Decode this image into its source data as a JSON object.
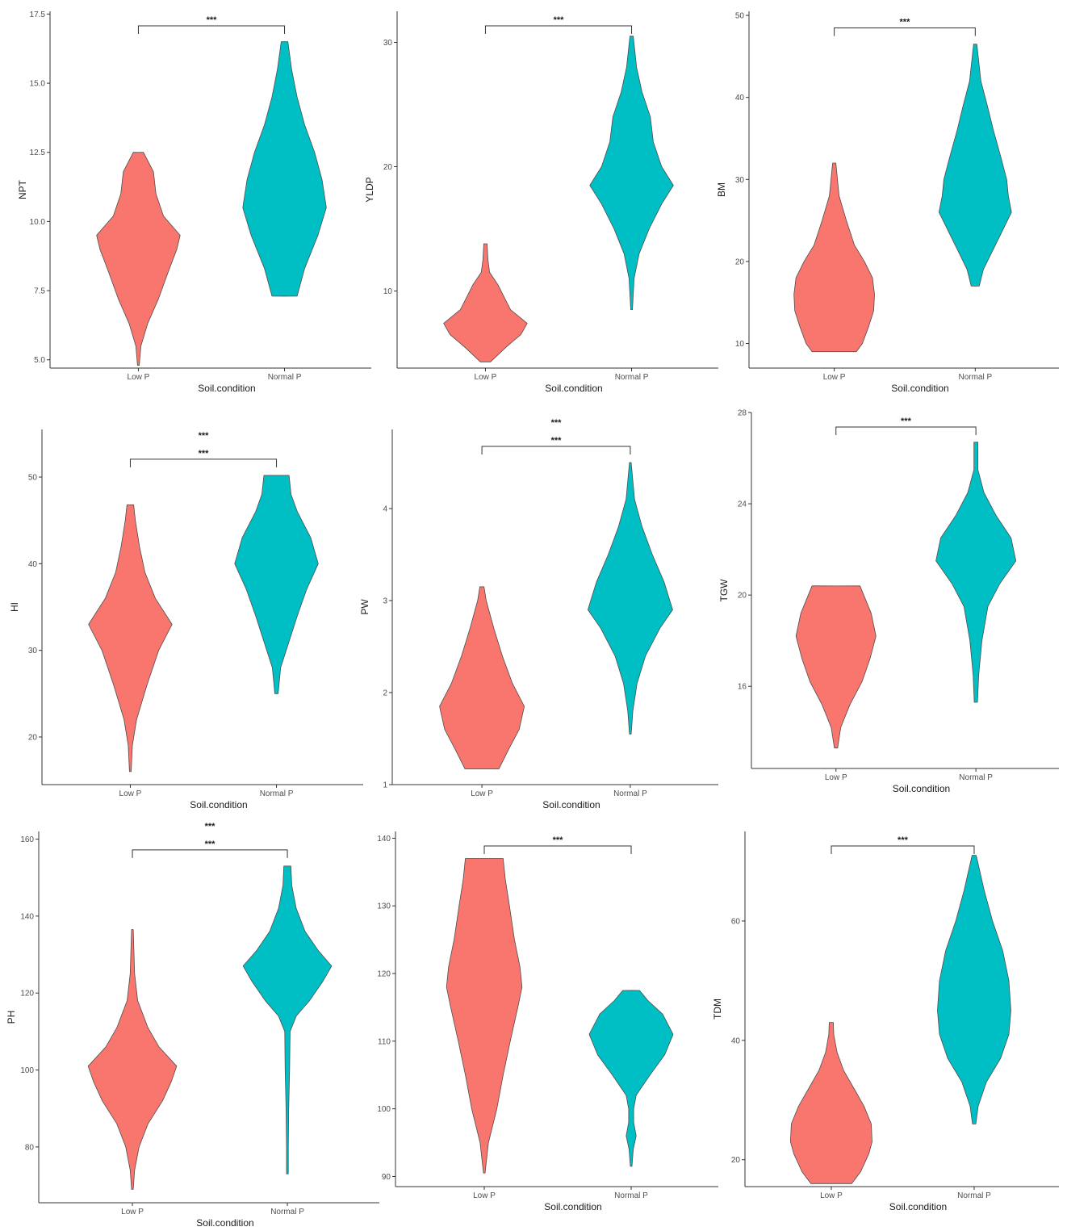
{
  "colors": {
    "low_p": "#F8766D",
    "normal_p": "#00BFC4",
    "outline": "#4d4d4d",
    "axis": "#333333",
    "text": "#1a1a1a"
  },
  "chart_data": [
    {
      "type": "violin",
      "ylabel": "NPT",
      "xlabel": "Soil.condition",
      "categories": [
        "Low P",
        "Normal P"
      ],
      "ylim": [
        4.7,
        17.6
      ],
      "yticks": [
        5.0,
        7.5,
        10.0,
        12.5,
        15.0,
        17.5
      ],
      "ytick_labels": [
        "5.0",
        "7.5",
        "10.0",
        "12.5",
        "15.0",
        "17.5"
      ],
      "significance": [
        "***"
      ],
      "groups": [
        {
          "name": "Low P",
          "min": 4.8,
          "max": 12.5,
          "density": [
            [
              4.8,
              0.02
            ],
            [
              5.5,
              0.06
            ],
            [
              6.3,
              0.22
            ],
            [
              7.2,
              0.48
            ],
            [
              8.2,
              0.72
            ],
            [
              9.0,
              0.92
            ],
            [
              9.5,
              1.0
            ],
            [
              10.2,
              0.6
            ],
            [
              11.0,
              0.42
            ],
            [
              11.8,
              0.36
            ],
            [
              12.5,
              0.12
            ]
          ]
        },
        {
          "name": "Normal P",
          "min": 7.3,
          "max": 16.5,
          "density": [
            [
              7.3,
              0.3
            ],
            [
              8.3,
              0.48
            ],
            [
              9.5,
              0.8
            ],
            [
              10.5,
              1.0
            ],
            [
              11.5,
              0.9
            ],
            [
              12.5,
              0.72
            ],
            [
              13.5,
              0.48
            ],
            [
              14.5,
              0.3
            ],
            [
              15.5,
              0.17
            ],
            [
              16.5,
              0.08
            ]
          ]
        }
      ]
    },
    {
      "type": "violin",
      "ylabel": "YLDP",
      "xlabel": "Soil.condition",
      "categories": [
        "Low P",
        "Normal P"
      ],
      "ylim": [
        3.8,
        32.5
      ],
      "yticks": [
        10,
        20,
        30
      ],
      "ytick_labels": [
        "10",
        "20",
        "30"
      ],
      "significance": [
        "***"
      ],
      "groups": [
        {
          "name": "Low P",
          "min": 4.3,
          "max": 13.8,
          "density": [
            [
              4.3,
              0.12
            ],
            [
              5.5,
              0.5
            ],
            [
              6.5,
              0.85
            ],
            [
              7.4,
              1.0
            ],
            [
              8.5,
              0.6
            ],
            [
              9.5,
              0.45
            ],
            [
              10.5,
              0.3
            ],
            [
              11.5,
              0.1
            ],
            [
              12.5,
              0.06
            ],
            [
              13.8,
              0.04
            ]
          ]
        },
        {
          "name": "Normal P",
          "min": 8.5,
          "max": 30.5,
          "density": [
            [
              8.5,
              0.02
            ],
            [
              11,
              0.06
            ],
            [
              13,
              0.18
            ],
            [
              15,
              0.42
            ],
            [
              17,
              0.72
            ],
            [
              18.5,
              1.0
            ],
            [
              20,
              0.72
            ],
            [
              22,
              0.52
            ],
            [
              24,
              0.45
            ],
            [
              26,
              0.25
            ],
            [
              28,
              0.12
            ],
            [
              30.5,
              0.04
            ]
          ]
        }
      ]
    },
    {
      "type": "violin",
      "ylabel": "BM",
      "xlabel": "Soil.condition",
      "categories": [
        "Low P",
        "Normal P"
      ],
      "ylim": [
        7,
        50.5
      ],
      "yticks": [
        10,
        20,
        30,
        40,
        50
      ],
      "ytick_labels": [
        "10",
        "20",
        "30",
        "40",
        "50"
      ],
      "significance": [
        "***"
      ],
      "groups": [
        {
          "name": "Low P",
          "min": 9,
          "max": 32,
          "density": [
            [
              9,
              0.55
            ],
            [
              10,
              0.7
            ],
            [
              12,
              0.85
            ],
            [
              14,
              0.98
            ],
            [
              16,
              1.0
            ],
            [
              18,
              0.95
            ],
            [
              20,
              0.75
            ],
            [
              22,
              0.5
            ],
            [
              25,
              0.3
            ],
            [
              28,
              0.12
            ],
            [
              32,
              0.04
            ]
          ]
        },
        {
          "name": "Normal P",
          "min": 17,
          "max": 46.5,
          "density": [
            [
              17,
              0.1
            ],
            [
              19,
              0.2
            ],
            [
              21,
              0.4
            ],
            [
              23,
              0.6
            ],
            [
              26,
              0.9
            ],
            [
              28,
              0.82
            ],
            [
              30,
              0.78
            ],
            [
              33,
              0.62
            ],
            [
              36,
              0.45
            ],
            [
              39,
              0.3
            ],
            [
              42,
              0.14
            ],
            [
              46.5,
              0.04
            ]
          ]
        }
      ]
    },
    {
      "type": "violin",
      "ylabel": "HI",
      "xlabel": "Soil.condition",
      "categories": [
        "Low P",
        "Normal P"
      ],
      "ylim": [
        14.5,
        55.5
      ],
      "yticks": [
        20,
        30,
        40,
        50
      ],
      "ytick_labels": [
        "20",
        "30",
        "40",
        "50"
      ],
      "significance": [
        "***",
        "***"
      ],
      "groups": [
        {
          "name": "Low P",
          "min": 16,
          "max": 46.8,
          "density": [
            [
              16,
              0.02
            ],
            [
              19,
              0.05
            ],
            [
              22,
              0.15
            ],
            [
              26,
              0.4
            ],
            [
              30,
              0.68
            ],
            [
              33,
              1.0
            ],
            [
              36,
              0.6
            ],
            [
              39,
              0.35
            ],
            [
              42,
              0.22
            ],
            [
              45,
              0.12
            ],
            [
              46.8,
              0.08
            ]
          ]
        },
        {
          "name": "Normal P",
          "min": 25,
          "max": 50.2,
          "density": [
            [
              25,
              0.04
            ],
            [
              28,
              0.1
            ],
            [
              31,
              0.3
            ],
            [
              34,
              0.5
            ],
            [
              37,
              0.72
            ],
            [
              40,
              1.0
            ],
            [
              43,
              0.82
            ],
            [
              46,
              0.5
            ],
            [
              48,
              0.35
            ],
            [
              50.2,
              0.3
            ]
          ]
        }
      ]
    },
    {
      "type": "violin",
      "ylabel": "PW",
      "xlabel": "Soil.condition",
      "categories": [
        "Low P",
        "Normal P"
      ],
      "ylim": [
        1.0,
        4.86
      ],
      "yticks": [
        1,
        2,
        3,
        4
      ],
      "ytick_labels": [
        "1",
        "2",
        "3",
        "4"
      ],
      "significance": [
        "***",
        "***"
      ],
      "groups": [
        {
          "name": "Low P",
          "min": 1.17,
          "max": 3.15,
          "density": [
            [
              1.17,
              0.4
            ],
            [
              1.4,
              0.65
            ],
            [
              1.6,
              0.88
            ],
            [
              1.85,
              1.0
            ],
            [
              2.1,
              0.72
            ],
            [
              2.4,
              0.48
            ],
            [
              2.7,
              0.28
            ],
            [
              3.0,
              0.1
            ],
            [
              3.15,
              0.05
            ]
          ]
        },
        {
          "name": "Normal P",
          "min": 1.55,
          "max": 4.5,
          "density": [
            [
              1.55,
              0.02
            ],
            [
              1.8,
              0.06
            ],
            [
              2.1,
              0.16
            ],
            [
              2.4,
              0.36
            ],
            [
              2.7,
              0.7
            ],
            [
              2.9,
              1.0
            ],
            [
              3.2,
              0.8
            ],
            [
              3.5,
              0.52
            ],
            [
              3.8,
              0.28
            ],
            [
              4.1,
              0.1
            ],
            [
              4.5,
              0.02
            ]
          ]
        }
      ]
    },
    {
      "type": "violin",
      "ylabel": "TGW",
      "xlabel": "Soil.condition",
      "categories": [
        "Low P",
        "Normal P"
      ],
      "ylim": [
        12.4,
        28.0
      ],
      "yticks": [
        16,
        20,
        24,
        28
      ],
      "ytick_labels": [
        "16",
        "20",
        "24",
        "28"
      ],
      "significance": [
        "***"
      ],
      "groups": [
        {
          "name": "Low P",
          "min": 13.3,
          "max": 20.4,
          "density": [
            [
              13.3,
              0.04
            ],
            [
              14.2,
              0.12
            ],
            [
              15.2,
              0.35
            ],
            [
              16.2,
              0.65
            ],
            [
              17.2,
              0.85
            ],
            [
              18.2,
              1.0
            ],
            [
              19.2,
              0.88
            ],
            [
              20.4,
              0.6
            ]
          ]
        },
        {
          "name": "Normal P",
          "min": 15.3,
          "max": 26.7,
          "density": [
            [
              15.3,
              0.04
            ],
            [
              16.5,
              0.07
            ],
            [
              18,
              0.15
            ],
            [
              19.5,
              0.3
            ],
            [
              20.5,
              0.6
            ],
            [
              21.5,
              1.0
            ],
            [
              22.5,
              0.88
            ],
            [
              23.5,
              0.5
            ],
            [
              24.5,
              0.2
            ],
            [
              25.5,
              0.05
            ],
            [
              26.7,
              0.05
            ]
          ]
        }
      ]
    },
    {
      "type": "violin",
      "ylabel": "PH",
      "xlabel": "Soil.condition",
      "categories": [
        "Low P",
        "Normal P"
      ],
      "ylim": [
        65.5,
        162.0
      ],
      "yticks": [
        80,
        100,
        120,
        140,
        160
      ],
      "ytick_labels": [
        "80",
        "100",
        "120",
        "140",
        "160"
      ],
      "significance": [
        "***",
        "***"
      ],
      "groups": [
        {
          "name": "Low P",
          "min": 69,
          "max": 136.5,
          "density": [
            [
              69,
              0.02
            ],
            [
              74,
              0.05
            ],
            [
              80,
              0.15
            ],
            [
              86,
              0.35
            ],
            [
              92,
              0.68
            ],
            [
              97,
              0.88
            ],
            [
              101,
              1.0
            ],
            [
              106,
              0.6
            ],
            [
              111,
              0.35
            ],
            [
              118,
              0.12
            ],
            [
              125,
              0.05
            ],
            [
              136.5,
              0.02
            ]
          ]
        },
        {
          "name": "Normal P",
          "min": 73,
          "max": 153,
          "density": [
            [
              73,
              0.02
            ],
            [
              80,
              0.02
            ],
            [
              90,
              0.03
            ],
            [
              100,
              0.05
            ],
            [
              110,
              0.06
            ],
            [
              114,
              0.2
            ],
            [
              118,
              0.5
            ],
            [
              123,
              0.8
            ],
            [
              127,
              1.0
            ],
            [
              131,
              0.7
            ],
            [
              136,
              0.4
            ],
            [
              142,
              0.2
            ],
            [
              148,
              0.1
            ],
            [
              153,
              0.08
            ]
          ]
        }
      ]
    },
    {
      "type": "violin",
      "ylabel": "",
      "xlabel": "Soil.condition",
      "categories": [
        "Low P",
        "Normal P"
      ],
      "ylim": [
        88.5,
        141.0
      ],
      "yticks": [
        90,
        100,
        110,
        120,
        130,
        140
      ],
      "ytick_labels": [
        "90",
        "100",
        "110",
        "120",
        "130",
        "140"
      ],
      "significance": [
        "***"
      ],
      "groups": [
        {
          "name": "Low P",
          "min": 90.5,
          "max": 137,
          "density": [
            [
              90.5,
              0.02
            ],
            [
              95,
              0.1
            ],
            [
              100,
              0.3
            ],
            [
              105,
              0.45
            ],
            [
              110,
              0.62
            ],
            [
              115,
              0.8
            ],
            [
              118,
              0.9
            ],
            [
              121,
              0.85
            ],
            [
              125,
              0.72
            ],
            [
              130,
              0.6
            ],
            [
              134,
              0.5
            ],
            [
              137,
              0.45
            ]
          ]
        },
        {
          "name": "Normal P",
          "min": 91.5,
          "max": 117.5,
          "density": [
            [
              91.5,
              0.02
            ],
            [
              94,
              0.05
            ],
            [
              96,
              0.12
            ],
            [
              98,
              0.06
            ],
            [
              100,
              0.06
            ],
            [
              102,
              0.12
            ],
            [
              105,
              0.45
            ],
            [
              108,
              0.8
            ],
            [
              111,
              1.0
            ],
            [
              114,
              0.75
            ],
            [
              116,
              0.4
            ],
            [
              117.5,
              0.2
            ]
          ]
        }
      ]
    },
    {
      "type": "violin",
      "ylabel": "TDM",
      "xlabel": "Soil.condition",
      "categories": [
        "Low P",
        "Normal P"
      ],
      "ylim": [
        15.5,
        75.0
      ],
      "yticks": [
        20,
        40,
        60
      ],
      "ytick_labels": [
        "20",
        "40",
        "60"
      ],
      "significance": [
        "***"
      ],
      "groups": [
        {
          "name": "Low P",
          "min": 16,
          "max": 43,
          "density": [
            [
              16,
              0.5
            ],
            [
              18,
              0.72
            ],
            [
              21,
              0.92
            ],
            [
              23,
              1.0
            ],
            [
              26,
              0.98
            ],
            [
              29,
              0.8
            ],
            [
              32,
              0.55
            ],
            [
              35,
              0.3
            ],
            [
              38,
              0.14
            ],
            [
              41,
              0.06
            ],
            [
              43,
              0.05
            ]
          ]
        },
        {
          "name": "Normal P",
          "min": 26,
          "max": 71,
          "density": [
            [
              26,
              0.04
            ],
            [
              29,
              0.1
            ],
            [
              33,
              0.3
            ],
            [
              37,
              0.65
            ],
            [
              41,
              0.85
            ],
            [
              45,
              0.9
            ],
            [
              50,
              0.85
            ],
            [
              55,
              0.7
            ],
            [
              60,
              0.45
            ],
            [
              65,
              0.25
            ],
            [
              71,
              0.05
            ]
          ]
        }
      ]
    }
  ]
}
